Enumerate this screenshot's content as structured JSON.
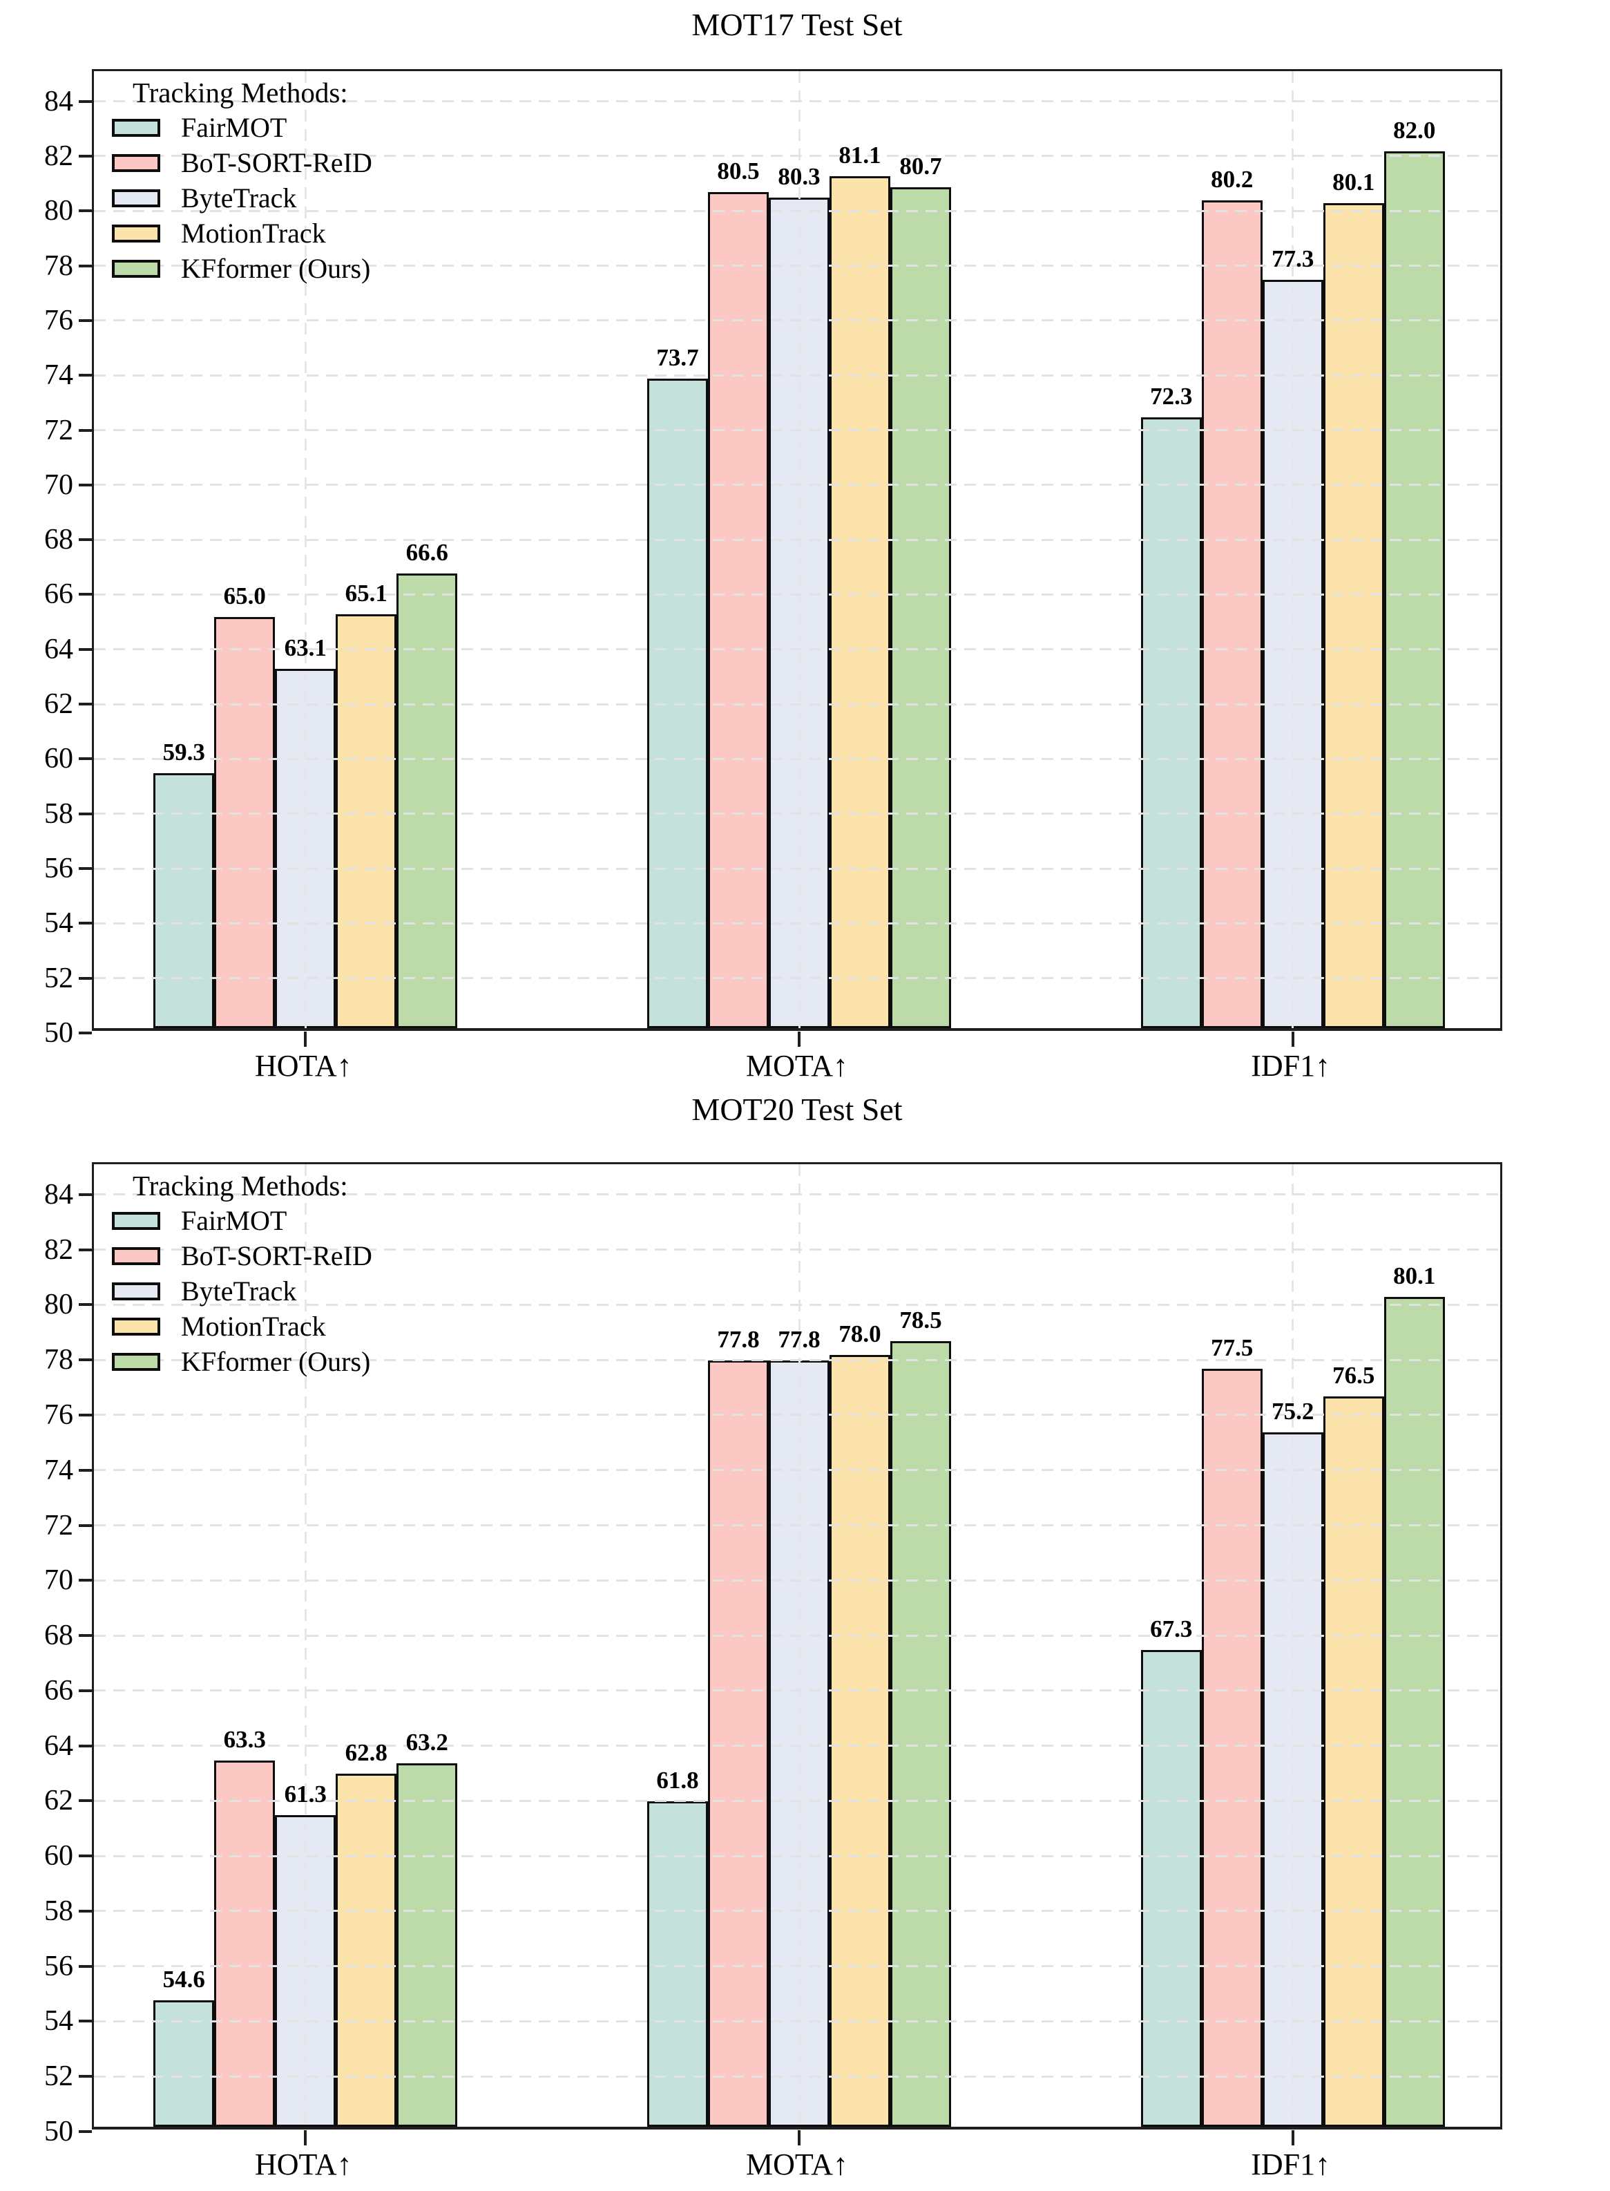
{
  "chart_data": [
    {
      "type": "bar",
      "title": "MOT17 Test Set",
      "legend_title": "Tracking Methods:",
      "legend_position": "upper left",
      "grid": "dashed",
      "xlabel": "",
      "ylabel": "",
      "ylim": [
        50,
        85.1
      ],
      "yticks": [
        50,
        52,
        54,
        56,
        58,
        60,
        62,
        64,
        66,
        68,
        70,
        72,
        74,
        76,
        78,
        80,
        82,
        84
      ],
      "categories": [
        "HOTA↑",
        "MOTA↑",
        "IDF1↑"
      ],
      "series": [
        {
          "name": "FairMOT",
          "color": "#c5e1db",
          "values": [
            59.3,
            73.7,
            72.3
          ],
          "value_labels": [
            "59.3",
            "73.7",
            "72.3"
          ]
        },
        {
          "name": "BoT-SORT-ReID",
          "color": "#fcc8c4",
          "values": [
            65.0,
            80.5,
            80.2
          ],
          "value_labels": [
            "65.0",
            "80.5",
            "80.2"
          ]
        },
        {
          "name": "ByteTrack",
          "color": "#e5e9f4",
          "values": [
            63.1,
            80.3,
            77.3
          ],
          "value_labels": [
            "63.1",
            "80.3",
            "77.3"
          ]
        },
        {
          "name": "MotionTrack",
          "color": "#fce3ac",
          "values": [
            65.1,
            81.1,
            80.1
          ],
          "value_labels": [
            "65.1",
            "81.1",
            "80.1"
          ]
        },
        {
          "name": "KFformer (Ours)",
          "color": "#bcdba8",
          "values": [
            66.6,
            80.7,
            82.0
          ],
          "value_labels": [
            "66.6",
            "80.7",
            "82.0"
          ]
        }
      ]
    },
    {
      "type": "bar",
      "title": "MOT20 Test Set",
      "legend_title": "Tracking Methods:",
      "legend_position": "upper left",
      "grid": "dashed",
      "xlabel": "",
      "ylabel": "",
      "ylim": [
        50,
        85.1
      ],
      "yticks": [
        50,
        52,
        54,
        56,
        58,
        60,
        62,
        64,
        66,
        68,
        70,
        72,
        74,
        76,
        78,
        80,
        82,
        84
      ],
      "categories": [
        "HOTA↑",
        "MOTA↑",
        "IDF1↑"
      ],
      "series": [
        {
          "name": "FairMOT",
          "color": "#c5e1db",
          "values": [
            54.6,
            61.8,
            67.3
          ],
          "value_labels": [
            "54.6",
            "61.8",
            "67.3"
          ]
        },
        {
          "name": "BoT-SORT-ReID",
          "color": "#fcc8c4",
          "values": [
            63.3,
            77.8,
            77.5
          ],
          "value_labels": [
            "63.3",
            "77.8",
            "77.5"
          ]
        },
        {
          "name": "ByteTrack",
          "color": "#e5e9f4",
          "values": [
            61.3,
            77.8,
            75.2
          ],
          "value_labels": [
            "61.3",
            "77.8",
            "75.2"
          ]
        },
        {
          "name": "MotionTrack",
          "color": "#fce3ac",
          "values": [
            62.8,
            78.0,
            76.5
          ],
          "value_labels": [
            "62.8",
            "78.0",
            "76.5"
          ]
        },
        {
          "name": "KFformer (Ours)",
          "color": "#bcdba8",
          "values": [
            63.2,
            78.5,
            80.1
          ],
          "value_labels": [
            "63.2",
            "78.5",
            "80.1"
          ]
        }
      ]
    }
  ]
}
